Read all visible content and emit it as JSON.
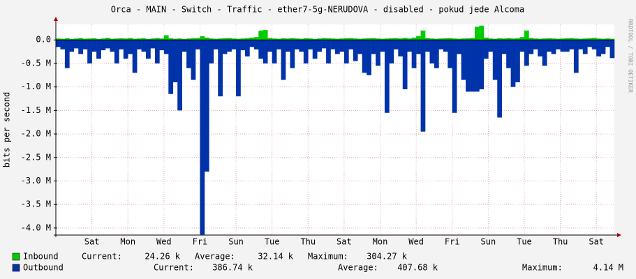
{
  "chart_data": {
    "type": "area",
    "title": "Orca - MAIN - Switch - Traffic - ether7-5g-NERUDOVA - disabled - pokud jede Alcoma",
    "y_label": "bits per second",
    "watermark": "RRDTOOL / TOBI OETIKER",
    "grid": true,
    "xlim": [
      0,
      31
    ],
    "xticks": [
      {
        "value": 2,
        "label": "Sat"
      },
      {
        "value": 4,
        "label": "Mon"
      },
      {
        "value": 6,
        "label": "Wed"
      },
      {
        "value": 8,
        "label": "Fri"
      },
      {
        "value": 10,
        "label": "Sun"
      },
      {
        "value": 12,
        "label": "Tue"
      },
      {
        "value": 14,
        "label": "Thu"
      },
      {
        "value": 16,
        "label": "Sat"
      },
      {
        "value": 18,
        "label": "Mon"
      },
      {
        "value": 20,
        "label": "Wed"
      },
      {
        "value": 22,
        "label": "Fri"
      },
      {
        "value": 24,
        "label": "Sun"
      },
      {
        "value": 26,
        "label": "Tue"
      },
      {
        "value": 28,
        "label": "Thu"
      },
      {
        "value": 30,
        "label": "Sat"
      }
    ],
    "ylim": [
      -4150000,
      330000
    ],
    "yticks": [
      {
        "value": 0,
        "label": "0.0"
      },
      {
        "value": -500000,
        "label": "-0.5 M"
      },
      {
        "value": -1000000,
        "label": "-1.0 M"
      },
      {
        "value": -1500000,
        "label": "-1.5 M"
      },
      {
        "value": -2000000,
        "label": "-2.0 M"
      },
      {
        "value": -2500000,
        "label": "-2.5 M"
      },
      {
        "value": -3000000,
        "label": "-3.0 M"
      },
      {
        "value": -3500000,
        "label": "-3.5 M"
      },
      {
        "value": -4000000,
        "label": "-4.0 M"
      }
    ],
    "x": [
      0,
      0.25,
      0.5,
      0.75,
      1,
      1.25,
      1.5,
      1.75,
      2,
      2.25,
      2.5,
      2.75,
      3,
      3.25,
      3.5,
      3.75,
      4,
      4.25,
      4.5,
      4.75,
      5,
      5.25,
      5.5,
      5.75,
      6,
      6.25,
      6.5,
      6.75,
      7,
      7.25,
      7.5,
      7.75,
      8,
      8.25,
      8.5,
      8.75,
      9,
      9.25,
      9.5,
      9.75,
      10,
      10.25,
      10.5,
      10.75,
      11,
      11.25,
      11.5,
      11.75,
      12,
      12.25,
      12.5,
      12.75,
      13,
      13.25,
      13.5,
      13.75,
      14,
      14.25,
      14.5,
      14.75,
      15,
      15.25,
      15.5,
      15.75,
      16,
      16.25,
      16.5,
      16.75,
      17,
      17.25,
      17.5,
      17.75,
      18,
      18.25,
      18.5,
      18.75,
      19,
      19.25,
      19.5,
      19.75,
      20,
      20.25,
      20.5,
      20.75,
      21,
      21.25,
      21.5,
      21.75,
      22,
      22.25,
      22.5,
      22.75,
      23,
      23.25,
      23.5,
      23.75,
      24,
      24.25,
      24.5,
      24.75,
      25,
      25.25,
      25.5,
      25.75,
      26,
      26.25,
      26.5,
      26.75,
      27,
      27.25,
      27.5,
      27.75,
      28,
      28.25,
      28.5,
      28.75,
      29,
      29.25,
      29.5,
      29.75,
      30,
      30.25,
      30.5,
      30.75
    ],
    "series": [
      {
        "name": "Inbound",
        "color": "#00cc00",
        "stats": [
          {
            "label": "Current:",
            "value": "24.26 k"
          },
          {
            "label": "Average:",
            "value": "32.14 k"
          },
          {
            "label": "Maximum:",
            "value": "304.27 k"
          }
        ],
        "values": [
          30000,
          25000,
          35000,
          20000,
          30000,
          40000,
          25000,
          30000,
          35000,
          20000,
          30000,
          45000,
          25000,
          30000,
          35000,
          30000,
          40000,
          25000,
          30000,
          35000,
          20000,
          30000,
          40000,
          30000,
          100000,
          35000,
          25000,
          30000,
          20000,
          30000,
          35000,
          40000,
          80000,
          50000,
          30000,
          25000,
          30000,
          35000,
          40000,
          30000,
          25000,
          30000,
          35000,
          50000,
          60000,
          200000,
          210000,
          40000,
          30000,
          25000,
          35000,
          30000,
          40000,
          30000,
          25000,
          35000,
          30000,
          20000,
          30000,
          40000,
          35000,
          30000,
          25000,
          30000,
          35000,
          40000,
          30000,
          25000,
          30000,
          35000,
          40000,
          30000,
          25000,
          30000,
          35000,
          40000,
          30000,
          45000,
          30000,
          50000,
          80000,
          200000,
          40000,
          30000,
          25000,
          30000,
          35000,
          40000,
          30000,
          25000,
          30000,
          35000,
          40000,
          280000,
          304270,
          50000,
          30000,
          25000,
          35000,
          30000,
          40000,
          30000,
          35000,
          60000,
          200000,
          40000,
          30000,
          25000,
          30000,
          35000,
          30000,
          25000,
          30000,
          35000,
          40000,
          30000,
          25000,
          30000,
          35000,
          45000,
          30000,
          25000,
          30000,
          24260
        ]
      },
      {
        "name": "Outbound",
        "color": "#0033aa",
        "stats": [
          {
            "label": "Current:",
            "value": "386.74 k"
          },
          {
            "label": "Average:",
            "value": "407.68 k"
          },
          {
            "label": "Maximum:",
            "value": "4.14 M"
          }
        ],
        "values": [
          -150000,
          -200000,
          -600000,
          -250000,
          -180000,
          -300000,
          -200000,
          -500000,
          -250000,
          -400000,
          -220000,
          -180000,
          -250000,
          -500000,
          -200000,
          -400000,
          -300000,
          -700000,
          -200000,
          -250000,
          -400000,
          -180000,
          -500000,
          -220000,
          -300000,
          -1150000,
          -900000,
          -1500000,
          -250000,
          -600000,
          -850000,
          -200000,
          -4140000,
          -2800000,
          -500000,
          -200000,
          -1200000,
          -300000,
          -250000,
          -200000,
          -1200000,
          -220000,
          -350000,
          -150000,
          -200000,
          -400000,
          -500000,
          -250000,
          -500000,
          -200000,
          -850000,
          -250000,
          -600000,
          -200000,
          -250000,
          -500000,
          -200000,
          -400000,
          -250000,
          -180000,
          -500000,
          -200000,
          -300000,
          -250000,
          -500000,
          -200000,
          -450000,
          -300000,
          -700000,
          -750000,
          -300000,
          -550000,
          -250000,
          -1550000,
          -500000,
          -200000,
          -350000,
          -1050000,
          -250000,
          -600000,
          -300000,
          -1950000,
          -250000,
          -500000,
          -600000,
          -200000,
          -250000,
          -600000,
          -1550000,
          -300000,
          -850000,
          -1100000,
          -1100000,
          -1100000,
          -1050000,
          -400000,
          -250000,
          -850000,
          -1650000,
          -300000,
          -600000,
          -1000000,
          -900000,
          -250000,
          -550000,
          -300000,
          -200000,
          -350000,
          -550000,
          -250000,
          -300000,
          -200000,
          -250000,
          -250000,
          -200000,
          -700000,
          -200000,
          -300000,
          -150000,
          -200000,
          -350000,
          -300000,
          -150000,
          -386740
        ]
      }
    ]
  }
}
